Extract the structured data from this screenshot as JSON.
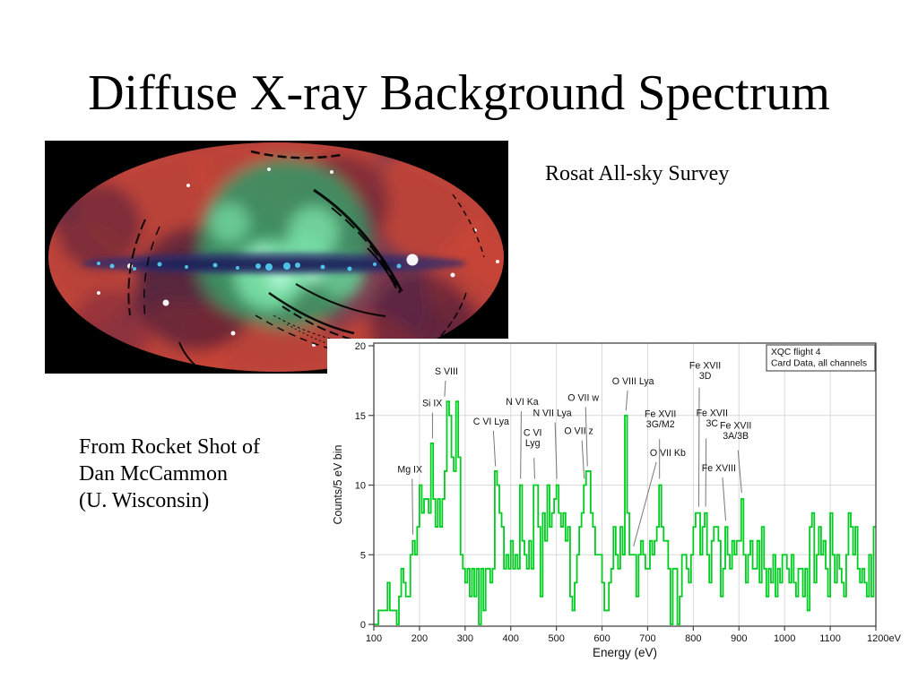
{
  "slide": {
    "background": "#ffffff",
    "title": "Diffuse X-ray Background Spectrum",
    "caption_right": "Rosat All-sky Survey",
    "caption_left_lines": [
      "From Rocket Shot of",
      "Dan McCammon",
      "(U. Wisconsin)"
    ]
  },
  "map": {
    "description": "ROSAT all-sky survey false-color X-ray map, Aitoff projection on black",
    "palette": {
      "background": "#000000",
      "base": "#7c3b4e",
      "red": "#c94536",
      "dark_red": "#8a2f3c",
      "maroon": "#451a38",
      "teal": "#3f8f63",
      "bright_green": "#7ae2a8",
      "mint": "#b2f7d6",
      "band_blue": "#262b6e",
      "band_core": "#1b2058",
      "cyan": "#55dcff",
      "star_white": "#ffffff",
      "streak": "#000000"
    }
  },
  "chart_data": {
    "type": "line",
    "style": "histogram-step",
    "title": "",
    "xlabel": "Energy (eV)",
    "ylabel": "Counts/5 eV bin",
    "xlim": [
      100,
      1200
    ],
    "ylim": [
      0,
      20
    ],
    "xticks": [
      100,
      200,
      300,
      400,
      500,
      600,
      700,
      800,
      900,
      1000,
      1100,
      1200
    ],
    "xtick_labels": [
      "100",
      "200",
      "300",
      "400",
      "500",
      "600",
      "700",
      "800",
      "900",
      "1000",
      "1100",
      "1200eV"
    ],
    "yticks": [
      0,
      5,
      10,
      15,
      20
    ],
    "grid": true,
    "legend": {
      "position": "top-right",
      "lines": [
        "XQC flight 4",
        "Card Data, all channels"
      ]
    },
    "colors": {
      "line": "#00cc22",
      "grid": "#d9d9d9",
      "frame": "#444444",
      "text": "#111111",
      "annotation_line": "#777777"
    },
    "series": [
      {
        "name": "XQC flight 4 card data",
        "bin_start_ev": 100,
        "bin_width_ev": 5,
        "counts": [
          0,
          0,
          1,
          1,
          1,
          1,
          3,
          1,
          1,
          1,
          0,
          2,
          4,
          3,
          2,
          2,
          5,
          6,
          5,
          7,
          10,
          8,
          9,
          9,
          8,
          13,
          9,
          7,
          9,
          7,
          9,
          11,
          16,
          15,
          12,
          11,
          16,
          12,
          5,
          4,
          3,
          4,
          2,
          4,
          2,
          4,
          0,
          4,
          1,
          4,
          4,
          3,
          4,
          11,
          10,
          8,
          7,
          4,
          5,
          4,
          6,
          4,
          5,
          4,
          10,
          6,
          5,
          4,
          6,
          4,
          10,
          10,
          7,
          2,
          8,
          6,
          10,
          7,
          8,
          9,
          10,
          8,
          7,
          8,
          6,
          7,
          2,
          1,
          3,
          5,
          7,
          8,
          10,
          11,
          11,
          8,
          7,
          5,
          5,
          5,
          3,
          1,
          1,
          3,
          4,
          7,
          5,
          4,
          7,
          5,
          15,
          8,
          5,
          5,
          5,
          2,
          5,
          6,
          5,
          4,
          4,
          6,
          5,
          6,
          7,
          10,
          7,
          6,
          6,
          4,
          0,
          4,
          4,
          0,
          2,
          5,
          5,
          4,
          3,
          5,
          7,
          8,
          8,
          5,
          7,
          8,
          5,
          3,
          6,
          7,
          7,
          6,
          2,
          4,
          7,
          5,
          4,
          6,
          5,
          6,
          6,
          9,
          5,
          3,
          5,
          6,
          4,
          4,
          6,
          3,
          7,
          4,
          2,
          4,
          3,
          5,
          2,
          4,
          3,
          5,
          5,
          4,
          3,
          5,
          3,
          2,
          4,
          4,
          2,
          4,
          1,
          7,
          8,
          3,
          5,
          7,
          5,
          6,
          4,
          2,
          8,
          5,
          3,
          5,
          4,
          3,
          2,
          5,
          8,
          7,
          5,
          7,
          4,
          3,
          4,
          3,
          2,
          5,
          2,
          7
        ]
      }
    ],
    "annotations": [
      {
        "lines": [
          "Mg IX"
        ],
        "label_e": 179,
        "label_c": 10.9,
        "from_e": 184,
        "from_c": 10.45,
        "tip_e": 185.5,
        "tip_c": 6.45
      },
      {
        "lines": [
          "Si IX"
        ],
        "label_e": 228,
        "label_c": 15.65,
        "from_e": 228.5,
        "from_c": 15.2,
        "tip_e": 228.5,
        "tip_c": 13.35
      },
      {
        "lines": [
          "S VIII"
        ],
        "label_e": 259,
        "label_c": 17.95,
        "from_e": 257,
        "from_c": 17.5,
        "tip_e": 255,
        "tip_c": 16.35
      },
      {
        "lines": [
          "C VI Lya"
        ],
        "label_e": 357,
        "label_c": 14.35,
        "from_e": 362,
        "from_c": 13.9,
        "tip_e": 366.5,
        "tip_c": 11.35
      },
      {
        "lines": [
          "N VI Ka"
        ],
        "label_e": 425,
        "label_c": 15.75,
        "from_e": 423,
        "from_c": 15.3,
        "tip_e": 421.5,
        "tip_c": 10.45
      },
      {
        "lines": [
          "C VI",
          "Lyg"
        ],
        "label_e": 448,
        "label_c": 13.55,
        "from_e": 451,
        "from_c": 11.95,
        "tip_e": 452.5,
        "tip_c": 10.45
      },
      {
        "lines": [
          "N VII Lya"
        ],
        "label_e": 491,
        "label_c": 14.95,
        "from_e": 497,
        "from_c": 14.5,
        "tip_e": 501,
        "tip_c": 10.45
      },
      {
        "lines": [
          "O VII z"
        ],
        "label_e": 549,
        "label_c": 13.65,
        "from_e": 556,
        "from_c": 13.2,
        "tip_e": 561,
        "tip_c": 10.45
      },
      {
        "lines": [
          "O VII w"
        ],
        "label_e": 559,
        "label_c": 16.05,
        "from_e": 564,
        "from_c": 15.6,
        "tip_e": 568,
        "tip_c": 11.35
      },
      {
        "lines": [
          "O VIII Lya"
        ],
        "label_e": 668,
        "label_c": 17.25,
        "from_e": 656,
        "from_c": 16.8,
        "tip_e": 652.5,
        "tip_c": 15.35
      },
      {
        "lines": [
          "O VII Kb"
        ],
        "label_e": 744,
        "label_c": 12.1,
        "from_e": 719,
        "from_c": 11.65,
        "tip_e": 669,
        "tip_c": 5.6
      },
      {
        "lines": [
          "Fe XVII",
          "3G/M2"
        ],
        "label_e": 728,
        "label_c": 14.9,
        "from_e": 726,
        "from_c": 13.3,
        "tip_e": 726,
        "tip_c": 10.45
      },
      {
        "lines": [
          "Fe XVII",
          "3D"
        ],
        "label_e": 826,
        "label_c": 18.35,
        "from_e": 813,
        "from_c": 17.0,
        "tip_e": 812,
        "tip_c": 8.45
      },
      {
        "lines": [
          "Fe XVII",
          "3C"
        ],
        "label_e": 841,
        "label_c": 14.95,
        "from_e": 828,
        "from_c": 13.35,
        "tip_e": 827,
        "tip_c": 8.45
      },
      {
        "lines": [
          "Fe XVIII"
        ],
        "label_e": 856,
        "label_c": 11.0,
        "from_e": 864,
        "from_c": 10.55,
        "tip_e": 871,
        "tip_c": 7.45
      },
      {
        "lines": [
          "Fe XVII",
          "3A/3B"
        ],
        "label_e": 893,
        "label_c": 14.05,
        "from_e": 898,
        "from_c": 12.5,
        "tip_e": 906,
        "tip_c": 9.45
      }
    ]
  }
}
